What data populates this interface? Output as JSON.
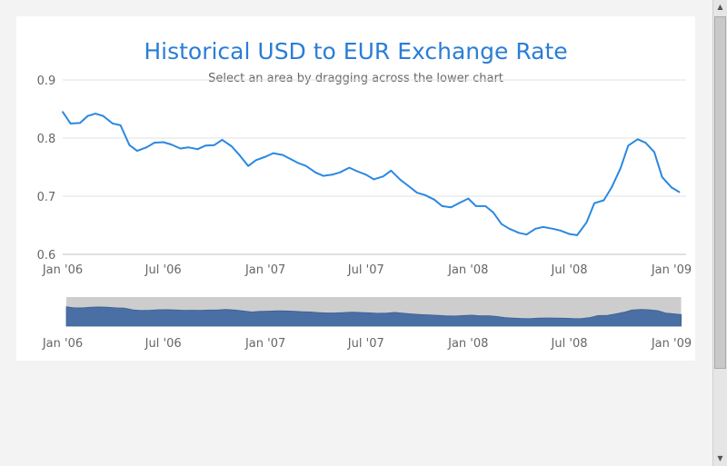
{
  "chart_data": {
    "type": "line",
    "title": "Historical USD to EUR Exchange Rate",
    "subtitle": "Select an area by dragging across the lower chart",
    "xlabel": "",
    "ylabel": "",
    "y_ticks": [
      "0.9",
      "0.8",
      "0.7",
      "0.6"
    ],
    "ylim": [
      0.6,
      0.9
    ],
    "x_ticks": [
      "Jan '06",
      "Jul '06",
      "Jan '07",
      "Jul '07",
      "Jan '08",
      "Jul '08",
      "Jan '09"
    ],
    "grid": "horizontal",
    "legend": "none",
    "color": "#2b88e0",
    "navigator_color": "#4a6fa5",
    "series": [
      {
        "x": [
          "2006-01-01",
          "2006-01-15",
          "2006-02-01",
          "2006-02-15",
          "2006-03-01",
          "2006-03-15",
          "2006-04-01",
          "2006-04-15",
          "2006-05-01",
          "2006-05-15",
          "2006-06-01",
          "2006-06-15",
          "2006-07-01",
          "2006-07-15",
          "2006-08-01",
          "2006-08-15",
          "2006-09-01",
          "2006-09-15",
          "2006-10-01",
          "2006-10-15",
          "2006-11-01",
          "2006-11-15",
          "2006-12-01",
          "2006-12-15",
          "2007-01-01",
          "2007-01-15",
          "2007-02-01",
          "2007-02-15",
          "2007-03-01",
          "2007-03-15",
          "2007-04-01",
          "2007-04-15",
          "2007-05-01",
          "2007-05-15",
          "2007-06-01",
          "2007-06-15",
          "2007-07-01",
          "2007-07-15",
          "2007-08-01",
          "2007-08-15",
          "2007-09-01",
          "2007-09-15",
          "2007-10-01",
          "2007-10-15",
          "2007-11-01",
          "2007-11-15",
          "2007-12-01",
          "2007-12-15",
          "2008-01-01",
          "2008-01-15",
          "2008-02-01",
          "2008-02-15",
          "2008-03-01",
          "2008-03-15",
          "2008-04-01",
          "2008-04-15",
          "2008-05-01",
          "2008-05-15",
          "2008-06-01",
          "2008-06-15",
          "2008-07-01",
          "2008-07-15",
          "2008-08-01",
          "2008-08-15",
          "2008-09-01",
          "2008-09-15",
          "2008-10-01",
          "2008-10-15",
          "2008-11-01",
          "2008-11-15",
          "2008-12-01",
          "2008-12-15",
          "2009-01-01",
          "2009-01-15"
        ],
        "y": [
          0.845,
          0.825,
          0.826,
          0.838,
          0.842,
          0.838,
          0.825,
          0.822,
          0.788,
          0.778,
          0.784,
          0.792,
          0.793,
          0.789,
          0.782,
          0.784,
          0.781,
          0.787,
          0.788,
          0.797,
          0.786,
          0.771,
          0.752,
          0.762,
          0.768,
          0.774,
          0.771,
          0.764,
          0.757,
          0.752,
          0.741,
          0.735,
          0.737,
          0.741,
          0.749,
          0.743,
          0.737,
          0.729,
          0.734,
          0.744,
          0.728,
          0.718,
          0.706,
          0.702,
          0.694,
          0.683,
          0.681,
          0.688,
          0.696,
          0.683,
          0.683,
          0.672,
          0.652,
          0.644,
          0.637,
          0.634,
          0.644,
          0.647,
          0.644,
          0.641,
          0.635,
          0.633,
          0.655,
          0.688,
          0.693,
          0.715,
          0.748,
          0.787,
          0.798,
          0.792,
          0.776,
          0.733,
          0.715,
          0.707
        ]
      }
    ]
  }
}
